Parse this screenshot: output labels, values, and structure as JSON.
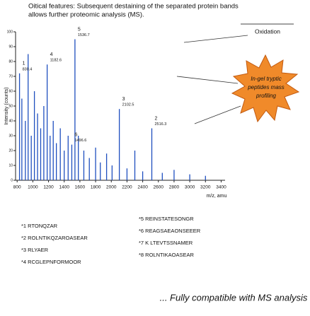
{
  "chart_data": {
    "type": "spectrum",
    "title_lines": [
      "Oitical features: Subsequent destaining of the separated protein bands",
      "allows further proteomic analysis (MS)."
    ],
    "y_label": "Intensity (counts)",
    "x_label": "m/z, amu",
    "color": "#1f4fbf",
    "xlim": [
      780,
      3450
    ],
    "ylim": [
      0,
      100
    ],
    "xticks": [
      800,
      1000,
      1200,
      1400,
      1600,
      1800,
      2000,
      2200,
      2400,
      2600,
      2800,
      3000,
      3200,
      3400
    ],
    "yticks": [
      0,
      10,
      20,
      30,
      40,
      50,
      60,
      70,
      80,
      90,
      100
    ],
    "x": [
      830.4,
      860,
      905,
      940,
      980,
      1020,
      1060,
      1100,
      1140,
      1182.6,
      1220,
      1260,
      1300,
      1350,
      1400,
      1450,
      1496.6,
      1536.7,
      1580,
      1650,
      1720,
      1800,
      1860,
      1940,
      2010,
      2102.5,
      2200,
      2300,
      2400,
      2516.3,
      2650,
      2800,
      3000,
      3200
    ],
    "values": [
      72,
      55,
      40,
      85,
      30,
      60,
      45,
      35,
      50,
      78,
      30,
      40,
      25,
      35,
      20,
      30,
      24,
      95,
      30,
      20,
      15,
      22,
      12,
      18,
      10,
      48,
      8,
      20,
      6,
      35,
      5,
      7,
      4,
      3
    ],
    "annotations": [
      {
        "number": "1",
        "x": 830.4
      },
      {
        "number": "4",
        "x": 1182.6
      },
      {
        "number": "5",
        "x": 1536.7
      },
      {
        "number": "3",
        "x": 2102.5
      },
      {
        "number": "2",
        "x": 2516.3
      },
      {
        "number": "6",
        "x": 1496.6
      }
    ],
    "oxidation_label": "Oxidation",
    "inset_lines": [
      "In-gel tryptic",
      "peptides mass",
      "profiling"
    ],
    "legend_left": [
      "*1 RTONQZAR",
      "*2 ROLNTIKQZAROASEAR",
      "*3 RLYAER",
      "*4 RCGLEPNFORMOOR"
    ],
    "legend_right": [
      "*5 REINSTATESONGR",
      "*6 REAGSAEAONSEEER",
      "*7 K LTEVTSSNAMER",
      "*8 ROLNTIKAOASEAR"
    ],
    "footer": "... Fully compatible with MS analysis"
  }
}
